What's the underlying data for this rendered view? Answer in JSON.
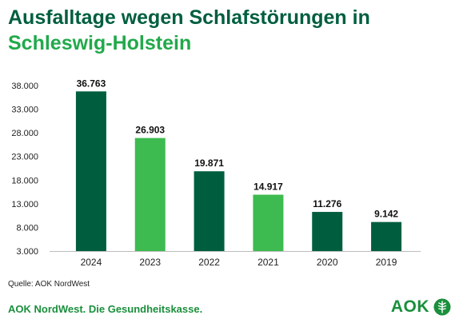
{
  "title": {
    "line1": "Ausfalltage wegen Schlafstörungen in",
    "line2": "Schleswig-Holstein"
  },
  "colors": {
    "dark_green": "#005e3f",
    "light_green": "#3dbb50",
    "title_dark": "#005e3f",
    "title_light": "#22a94b",
    "footer_green": "#1a8f3c"
  },
  "chart_data": {
    "type": "bar",
    "categories": [
      "2024",
      "2023",
      "2022",
      "2021",
      "2020",
      "2019"
    ],
    "values": [
      36763,
      26903,
      19871,
      14917,
      11276,
      9142
    ],
    "value_labels": [
      "36.763",
      "26.903",
      "19.871",
      "14.917",
      "11.276",
      "9.142"
    ],
    "bar_colors": [
      "#005e3f",
      "#3dbb50",
      "#005e3f",
      "#3dbb50",
      "#005e3f",
      "#005e3f"
    ],
    "yticks": [
      3000,
      8000,
      13000,
      18000,
      23000,
      28000,
      33000,
      38000
    ],
    "ytick_labels": [
      "3.000",
      "8.000",
      "13.000",
      "18.000",
      "23.000",
      "28.000",
      "33.000",
      "38.000"
    ],
    "ylim": [
      3000,
      38000
    ],
    "grid": false,
    "xlabel": "",
    "ylabel": ""
  },
  "source": "Quelle: AOK NordWest",
  "footer": {
    "tagline": "AOK NordWest. Die Gesundheitskasse.",
    "logo_text": "AOK",
    "logo_icon": "aok-tree-icon"
  }
}
